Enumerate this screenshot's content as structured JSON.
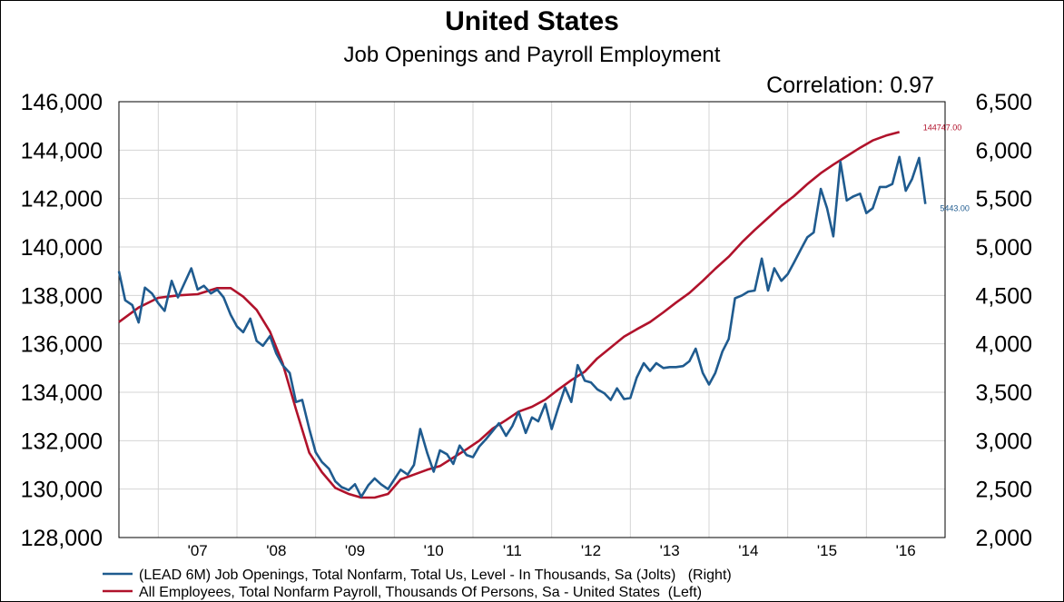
{
  "chart_data": {
    "type": "line",
    "title": "United States",
    "subtitle": "Job Openings and Payroll Employment",
    "annotation": "Correlation: 0.97",
    "x_tick_labels": [
      "'07",
      "'08",
      "'09",
      "'10",
      "'11",
      "'12",
      "'13",
      "'14",
      "'15",
      "'16"
    ],
    "x_range": [
      2006.5,
      2017.0
    ],
    "y_left": {
      "min": 128000,
      "max": 146000,
      "step": 2000,
      "tick_labels": [
        "128,000",
        "130,000",
        "132,000",
        "134,000",
        "136,000",
        "138,000",
        "140,000",
        "142,000",
        "144,000",
        "146,000"
      ]
    },
    "y_right": {
      "min": 2000,
      "max": 6500,
      "step": 500,
      "tick_labels": [
        "2,000",
        "2,500",
        "3,000",
        "3,500",
        "4,000",
        "4,500",
        "5,000",
        "5,500",
        "6,000",
        "6,500"
      ]
    },
    "grid": true,
    "legend_position": "bottom",
    "series": [
      {
        "name": "(LEAD 6M) Job Openings, Total Nonfarm, Total Us, Level - In Thousands, Sa (Jolts)   (Right)",
        "axis": "right",
        "color": "#1f5b8f",
        "end_label": "5443.00",
        "x": [
          2006.5,
          2006.58,
          2006.67,
          2006.75,
          2006.83,
          2006.92,
          2007.0,
          2007.08,
          2007.17,
          2007.25,
          2007.33,
          2007.42,
          2007.5,
          2007.58,
          2007.67,
          2007.75,
          2007.83,
          2007.92,
          2008.0,
          2008.08,
          2008.17,
          2008.25,
          2008.33,
          2008.42,
          2008.5,
          2008.58,
          2008.67,
          2008.75,
          2008.83,
          2008.92,
          2009.0,
          2009.08,
          2009.17,
          2009.25,
          2009.33,
          2009.42,
          2009.5,
          2009.58,
          2009.67,
          2009.75,
          2009.83,
          2009.92,
          2010.0,
          2010.08,
          2010.17,
          2010.25,
          2010.33,
          2010.42,
          2010.5,
          2010.58,
          2010.67,
          2010.75,
          2010.83,
          2010.92,
          2011.0,
          2011.08,
          2011.17,
          2011.25,
          2011.33,
          2011.42,
          2011.5,
          2011.58,
          2011.67,
          2011.75,
          2011.83,
          2011.92,
          2012.0,
          2012.08,
          2012.17,
          2012.25,
          2012.33,
          2012.42,
          2012.5,
          2012.58,
          2012.67,
          2012.75,
          2012.83,
          2012.92,
          2013.0,
          2013.08,
          2013.17,
          2013.25,
          2013.33,
          2013.42,
          2013.5,
          2013.58,
          2013.67,
          2013.75,
          2013.83,
          2013.92,
          2014.0,
          2014.08,
          2014.17,
          2014.25,
          2014.33,
          2014.42,
          2014.5,
          2014.58,
          2014.67,
          2014.75,
          2014.83,
          2014.92,
          2015.0,
          2015.08,
          2015.17,
          2015.25,
          2015.33,
          2015.42,
          2015.5,
          2015.58,
          2015.67,
          2015.75,
          2015.83,
          2015.92,
          2016.0,
          2016.08,
          2016.17,
          2016.25,
          2016.33,
          2016.42,
          2016.5,
          2016.58,
          2016.67,
          2016.75
        ],
        "values": [
          4750,
          4450,
          4400,
          4220,
          4580,
          4520,
          4420,
          4340,
          4650,
          4480,
          4620,
          4780,
          4560,
          4600,
          4520,
          4560,
          4480,
          4300,
          4180,
          4120,
          4260,
          4030,
          3980,
          4080,
          3900,
          3780,
          3700,
          3400,
          3420,
          3120,
          2880,
          2780,
          2710,
          2580,
          2520,
          2490,
          2550,
          2420,
          2540,
          2610,
          2550,
          2500,
          2600,
          2700,
          2650,
          2750,
          3120,
          2870,
          2680,
          2900,
          2860,
          2760,
          2950,
          2850,
          2830,
          2940,
          3020,
          3100,
          3180,
          3050,
          3150,
          3300,
          3080,
          3240,
          3200,
          3380,
          3120,
          3330,
          3550,
          3400,
          3780,
          3620,
          3600,
          3530,
          3490,
          3420,
          3540,
          3430,
          3440,
          3650,
          3800,
          3720,
          3800,
          3750,
          3760,
          3760,
          3770,
          3820,
          3950,
          3700,
          3580,
          3700,
          3920,
          4050,
          4470,
          4500,
          4540,
          4550,
          4880,
          4550,
          4780,
          4650,
          4720,
          4840,
          4980,
          5100,
          5150,
          5600,
          5400,
          5110,
          5880,
          5480,
          5520,
          5550,
          5350,
          5400,
          5620,
          5620,
          5650,
          5930,
          5580,
          5700,
          5920,
          5443
        ]
      },
      {
        "name": "All Employees, Total Nonfarm Payroll, Thousands Of Persons, Sa - United States  (Left)",
        "axis": "left",
        "color": "#b0122b",
        "end_label": "144747.00",
        "x": [
          2006.5,
          2006.75,
          2007.0,
          2007.25,
          2007.5,
          2007.75,
          2007.92,
          2008.08,
          2008.25,
          2008.42,
          2008.58,
          2008.75,
          2008.92,
          2009.08,
          2009.25,
          2009.42,
          2009.58,
          2009.75,
          2009.92,
          2010.08,
          2010.25,
          2010.42,
          2010.58,
          2010.75,
          2010.92,
          2011.08,
          2011.25,
          2011.42,
          2011.58,
          2011.75,
          2011.92,
          2012.08,
          2012.25,
          2012.42,
          2012.58,
          2012.75,
          2012.92,
          2013.08,
          2013.25,
          2013.42,
          2013.58,
          2013.75,
          2013.92,
          2014.08,
          2014.25,
          2014.42,
          2014.58,
          2014.75,
          2014.92,
          2015.08,
          2015.25,
          2015.42,
          2015.58,
          2015.75,
          2015.92,
          2016.08,
          2016.25,
          2016.42
        ],
        "values": [
          136900,
          137500,
          137900,
          138000,
          138050,
          138300,
          138300,
          137950,
          137400,
          136500,
          135200,
          133300,
          131500,
          130700,
          130050,
          129800,
          129650,
          129650,
          129800,
          130400,
          130600,
          130800,
          130950,
          131300,
          131650,
          132000,
          132500,
          132850,
          133200,
          133400,
          133700,
          134100,
          134500,
          134850,
          135400,
          135850,
          136300,
          136600,
          136900,
          137300,
          137700,
          138100,
          138600,
          139100,
          139600,
          140200,
          140700,
          141200,
          141700,
          142100,
          142600,
          143050,
          143400,
          143750,
          144100,
          144400,
          144600,
          144747
        ]
      }
    ]
  }
}
